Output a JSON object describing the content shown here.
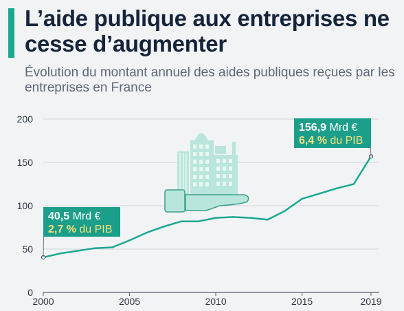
{
  "header": {
    "title": "L’aide publique aux entreprises ne cesse d’augmenter",
    "subtitle": "Évolution du montant annuel des aides publiques reçues par les entreprises en France"
  },
  "colors": {
    "accent": "#1aa890",
    "callout_bg": "#1b9e8a",
    "highlight": "#f6e27a",
    "title": "#15243a",
    "illustration_light": "#b9e6dc",
    "illustration_dark": "#3d9e8d"
  },
  "illustration": {
    "icon": "building-on-hand-icon"
  },
  "chart_data": {
    "type": "line",
    "title": "L’aide publique aux entreprises ne cesse d’augmenter",
    "subtitle": "Évolution du montant annuel des aides publiques reçues par les entreprises en France",
    "xlabel": "",
    "ylabel": "",
    "x": [
      2000,
      2001,
      2002,
      2003,
      2004,
      2005,
      2006,
      2007,
      2008,
      2009,
      2010,
      2011,
      2012,
      2013,
      2014,
      2015,
      2016,
      2017,
      2018,
      2019
    ],
    "values": [
      40.5,
      45,
      48,
      51,
      52,
      60,
      69,
      76,
      82,
      82,
      86,
      87,
      86,
      84,
      94,
      108,
      114,
      120,
      125,
      156.9
    ],
    "xlim": [
      2000,
      2019
    ],
    "ylim": [
      0,
      200
    ],
    "x_ticks": [
      "2000",
      "2005",
      "2010",
      "2015",
      "2019"
    ],
    "x_tick_values": [
      2000,
      2005,
      2010,
      2015,
      2019
    ],
    "y_ticks": [
      "0",
      "50",
      "100",
      "150",
      "200"
    ],
    "y_tick_values": [
      0,
      50,
      100,
      150,
      200
    ],
    "grid": true,
    "annotations": [
      {
        "x": 2000,
        "y": 40.5,
        "amount": "40,5 Mrd €",
        "pct": "2,7 %",
        "pct_suffix": " du PIB"
      },
      {
        "x": 2019,
        "y": 156.9,
        "amount": "156,9 Mrd €",
        "pct": "6,4 %",
        "pct_suffix": " du PIB"
      }
    ]
  }
}
